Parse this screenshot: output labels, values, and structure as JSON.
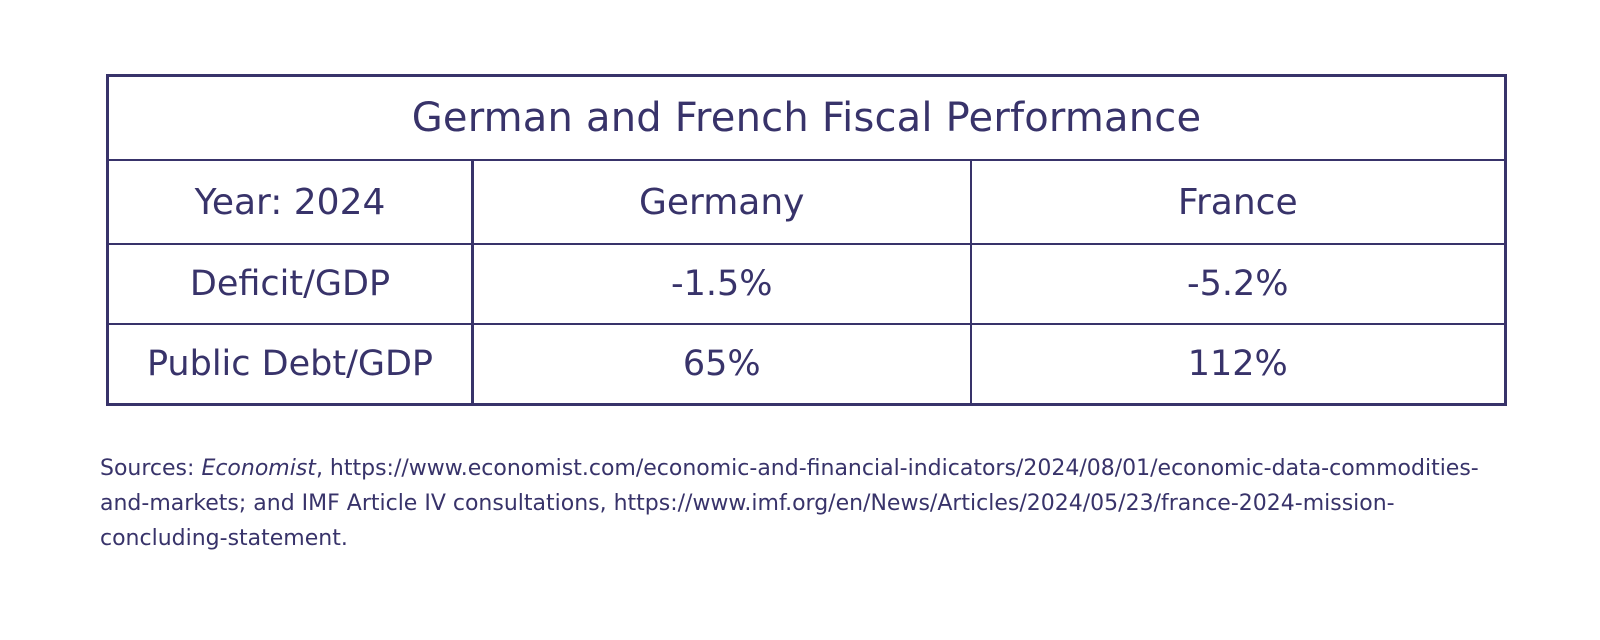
{
  "chart_data": {
    "type": "table",
    "title": "German and French Fiscal Performance",
    "columns": [
      "Year: 2024",
      "Germany",
      "France"
    ],
    "rows": [
      {
        "label": "Deficit/GDP",
        "values": [
          "-1.5%",
          "-5.2%"
        ]
      },
      {
        "label": "Public Debt/GDP",
        "values": [
          "65%",
          "112%"
        ]
      }
    ]
  },
  "sources": {
    "prefix": "Sources: ",
    "publication": "Economist",
    "rest": ", https://www.economist.com/economic-and-financial-indicators/2024/08/01/economic-data-commodities-and-markets; and IMF Article IV consultations, https://www.imf.org/en/News/Articles/2024/05/23/france-2024-mission-concluding-statement."
  },
  "colors": {
    "text": "#38336a",
    "border": "#38336a",
    "background": "#ffffff"
  }
}
